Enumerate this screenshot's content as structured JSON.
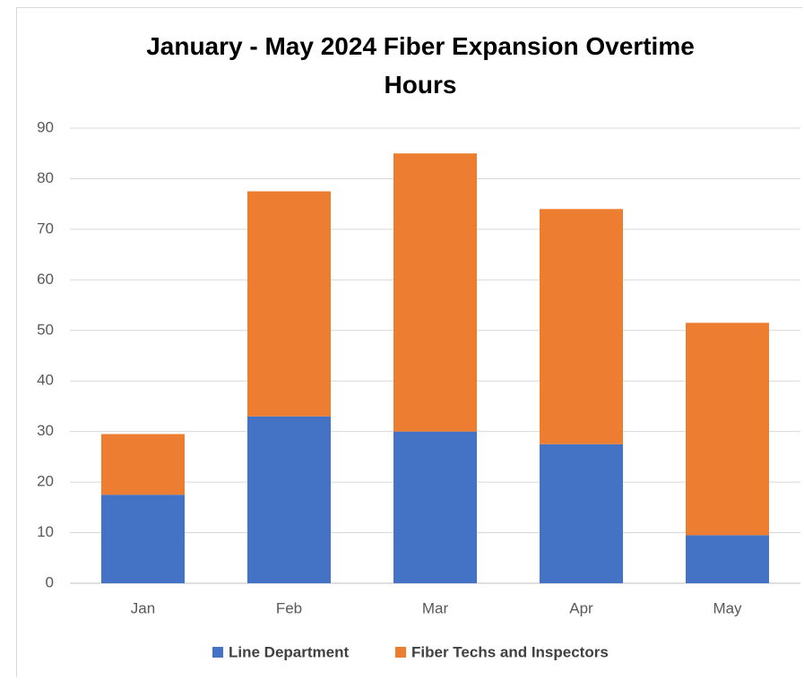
{
  "chart_data": {
    "type": "stacked_bar",
    "title": "January - May 2024 Fiber Expansion Overtime Hours",
    "categories": [
      "Jan",
      "Feb",
      "Mar",
      "Apr",
      "May"
    ],
    "series": [
      {
        "name": "Line Department",
        "color": "#4472c4",
        "values": [
          17.5,
          33,
          30,
          27.5,
          9.5
        ]
      },
      {
        "name": "Fiber Techs and Inspectors",
        "color": "#ed7d31",
        "values": [
          12,
          44.5,
          55,
          46.5,
          42
        ]
      }
    ],
    "ylim": [
      0,
      90
    ],
    "yticks": [
      0,
      10,
      20,
      30,
      40,
      50,
      60,
      70,
      80,
      90
    ],
    "grid": true,
    "legend": "bottom"
  }
}
